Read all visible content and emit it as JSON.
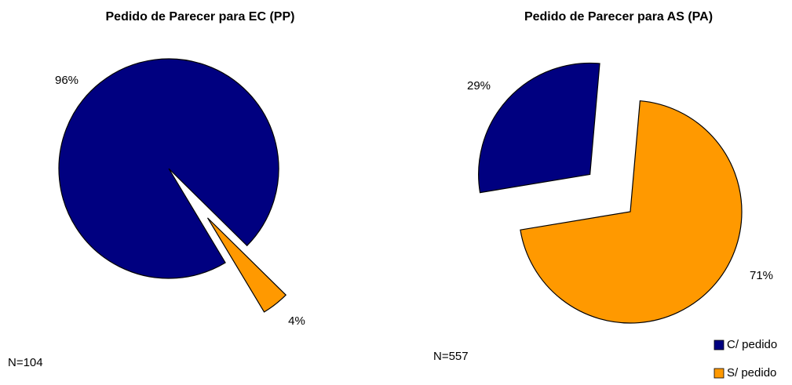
{
  "chart_data": [
    {
      "type": "pie",
      "title": "Pedido de Parecer para EC (PP)",
      "values": [
        96,
        4
      ],
      "value_labels": [
        "96%",
        "4%"
      ],
      "colors": [
        "#000080",
        "#ff9900"
      ],
      "annotation": "N=104"
    },
    {
      "type": "pie",
      "title": "Pedido de Parecer para AS (PA)",
      "categories": [
        "C/ pedido",
        "S/ pedido"
      ],
      "values": [
        29,
        71
      ],
      "value_labels": [
        "29%",
        "71%"
      ],
      "colors": [
        "#000080",
        "#ff9900"
      ],
      "annotation": "N=557",
      "legend": "lower right"
    }
  ]
}
